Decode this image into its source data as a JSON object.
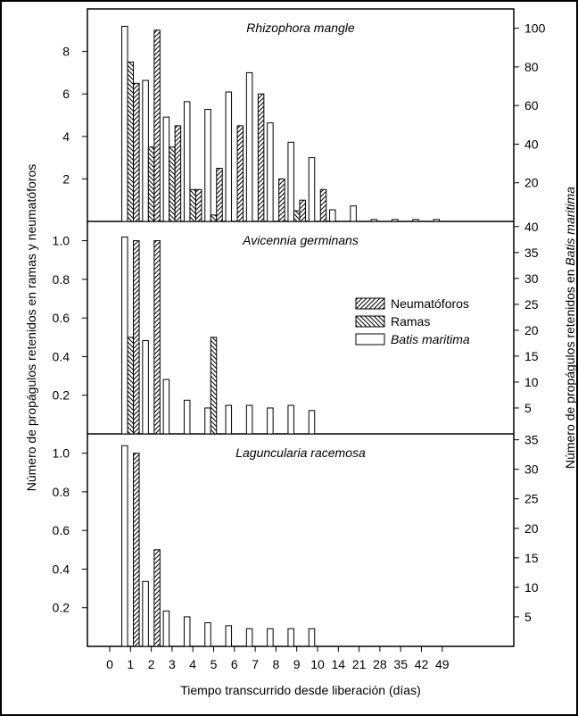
{
  "chart_data": {
    "type": "bar",
    "x_categories": [
      "0",
      "1",
      "2",
      "3",
      "4",
      "5",
      "6",
      "7",
      "8",
      "9",
      "10",
      "14",
      "21",
      "28",
      "35",
      "42",
      "49"
    ],
    "xlabel": "Tiempo transcurrido desde liberación (días)",
    "ylabel_left": "Número de propágulos retenidos en ramas y neumatóforos",
    "ylabel_right_prefix": "Número de propágulos retenidos en ",
    "ylabel_right_species": "Batis maritima",
    "legend": [
      {
        "name": "Neumatóforos",
        "pattern": "hatch-forward"
      },
      {
        "name": "Ramas",
        "pattern": "hatch-back"
      },
      {
        "name": "Batis maritima",
        "pattern": "open",
        "italic": true
      }
    ],
    "panels": [
      {
        "title": "Rhizophora mangle",
        "left_ylim": [
          0,
          10
        ],
        "left_ticks": [
          "2",
          "4",
          "6",
          "8"
        ],
        "left_tick_values": [
          2,
          4,
          6,
          8
        ],
        "right_ylim": [
          0,
          110
        ],
        "right_ticks": [
          "20",
          "40",
          "60",
          "80",
          "100"
        ],
        "right_tick_values": [
          20,
          40,
          60,
          80,
          100
        ],
        "batis_maritima": [
          null,
          101,
          73,
          54,
          62,
          58,
          67,
          77,
          51,
          41,
          33,
          6,
          8,
          1,
          1,
          1,
          1
        ],
        "ramas": [
          null,
          7.5,
          3.5,
          3.5,
          1.5,
          0.3,
          null,
          null,
          null,
          0.5,
          null,
          null,
          null,
          null,
          null,
          null,
          null
        ],
        "neumatoforos": [
          null,
          6.5,
          9,
          4.5,
          1.5,
          2.5,
          4.5,
          6,
          2,
          1,
          1.5,
          null,
          null,
          null,
          null,
          null,
          null
        ]
      },
      {
        "title": "Avicennia germinans",
        "left_ylim": [
          0,
          1.1
        ],
        "left_ticks": [
          "0.2",
          "0.4",
          "0.6",
          "0.8",
          "1.0"
        ],
        "left_tick_values": [
          0.2,
          0.4,
          0.6,
          0.8,
          1.0
        ],
        "right_ylim": [
          0,
          41
        ],
        "right_ticks": [
          "5",
          "10",
          "15",
          "20",
          "25",
          "30",
          "35",
          "40"
        ],
        "right_tick_values": [
          5,
          10,
          15,
          20,
          25,
          30,
          35,
          40
        ],
        "batis_maritima": [
          null,
          38,
          18,
          10.5,
          6.5,
          5,
          5.5,
          5.5,
          5,
          5.5,
          4.5,
          null,
          null,
          null,
          null,
          null,
          null
        ],
        "ramas": [
          null,
          0.5,
          null,
          null,
          null,
          0.5,
          null,
          null,
          null,
          null,
          null,
          null,
          null,
          null,
          null,
          null,
          null
        ],
        "neumatoforos": [
          null,
          1.0,
          1.0,
          null,
          null,
          null,
          null,
          null,
          null,
          null,
          null,
          null,
          null,
          null,
          null,
          null,
          null
        ]
      },
      {
        "title": "Laguncularia racemosa",
        "left_ylim": [
          0,
          1.1
        ],
        "left_ticks": [
          "0.2",
          "0.4",
          "0.6",
          "0.8",
          "1.0"
        ],
        "left_tick_values": [
          0.2,
          0.4,
          0.6,
          0.8,
          1.0
        ],
        "right_ylim": [
          0,
          36
        ],
        "right_ticks": [
          "5",
          "10",
          "15",
          "20",
          "25",
          "30",
          "35"
        ],
        "right_tick_values": [
          5,
          10,
          15,
          20,
          25,
          30,
          35
        ],
        "batis_maritima": [
          null,
          34,
          11,
          6,
          5,
          4,
          3.5,
          3,
          3,
          3,
          3,
          null,
          null,
          null,
          null,
          null,
          null
        ],
        "ramas": [
          null,
          null,
          null,
          null,
          null,
          null,
          null,
          null,
          null,
          null,
          null,
          null,
          null,
          null,
          null,
          null,
          null
        ],
        "neumatoforos": [
          null,
          1.0,
          0.5,
          null,
          null,
          null,
          null,
          null,
          null,
          null,
          null,
          null,
          null,
          null,
          null,
          null,
          null
        ]
      }
    ]
  }
}
